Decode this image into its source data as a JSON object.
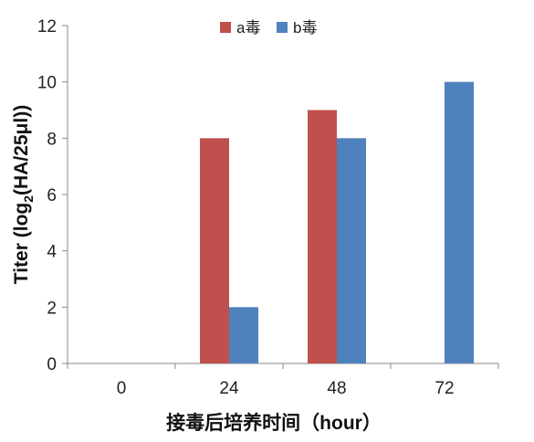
{
  "chart_data": {
    "type": "bar",
    "categories": [
      "0",
      "24",
      "48",
      "72"
    ],
    "series": [
      {
        "name": "a毒",
        "values": [
          null,
          8,
          9,
          null
        ],
        "color": "#c0504d"
      },
      {
        "name": "b毒",
        "values": [
          null,
          2,
          8,
          10
        ],
        "color": "#4f81bd"
      }
    ],
    "ylim": [
      0,
      12
    ],
    "yticks": [
      "0",
      "2",
      "4",
      "6",
      "8",
      "10",
      "12"
    ],
    "ylabel_main": "Titer (log",
    "ylabel_sub": "2",
    "ylabel_rest": "(HA/25μl))",
    "xlabel": "接毒后培养时间（hour）",
    "grid": false,
    "legend_position": "top"
  }
}
